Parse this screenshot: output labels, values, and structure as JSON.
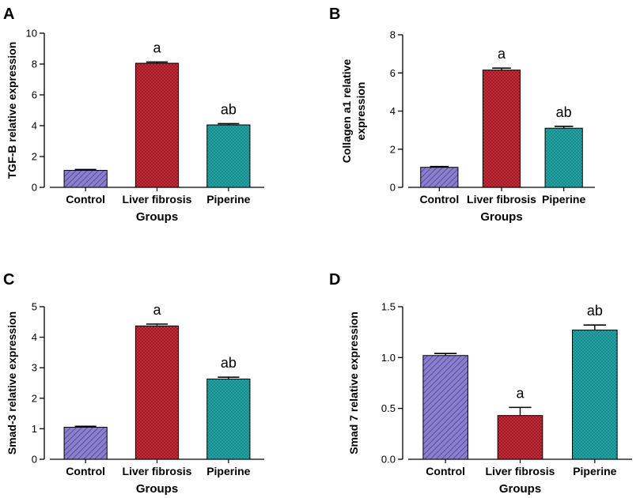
{
  "chart_data": [
    {
      "panel": "A",
      "type": "bar",
      "categories": [
        "Control",
        "Liver fibrosis",
        "Piperine"
      ],
      "values": [
        1.1,
        8.05,
        4.05
      ],
      "errors": [
        0.06,
        0.08,
        0.08
      ],
      "annotations": [
        "",
        "a",
        "ab"
      ],
      "xlabel": "Groups",
      "ylabel_lines": [
        "TGF-B relative expression"
      ],
      "ylim": [
        0,
        10
      ],
      "yticks": [
        0,
        2,
        4,
        6,
        8,
        10
      ],
      "ytick_labels": [
        "0",
        "2",
        "4",
        "6",
        "8",
        "10"
      ]
    },
    {
      "panel": "B",
      "type": "bar",
      "categories": [
        "Control",
        "Liver fibrosis",
        "Piperine"
      ],
      "values": [
        1.05,
        6.15,
        3.1
      ],
      "errors": [
        0.04,
        0.1,
        0.1
      ],
      "annotations": [
        "",
        "a",
        "ab"
      ],
      "xlabel": "Groups",
      "ylabel_lines": [
        "Collagen a1 relative",
        "expression"
      ],
      "ylim": [
        0,
        8
      ],
      "yticks": [
        0,
        2,
        4,
        6,
        8
      ],
      "ytick_labels": [
        "0",
        "2",
        "4",
        "6",
        "8"
      ]
    },
    {
      "panel": "C",
      "type": "bar",
      "categories": [
        "Control",
        "Liver fibrosis",
        "Piperine"
      ],
      "values": [
        1.05,
        4.37,
        2.63
      ],
      "errors": [
        0.03,
        0.06,
        0.06
      ],
      "annotations": [
        "",
        "a",
        "ab"
      ],
      "xlabel": "Groups",
      "ylabel_lines": [
        "Smad-3 relative expression"
      ],
      "ylim": [
        0,
        5
      ],
      "yticks": [
        0,
        1,
        2,
        3,
        4,
        5
      ],
      "ytick_labels": [
        "0",
        "1",
        "2",
        "3",
        "4",
        "5"
      ]
    },
    {
      "panel": "D",
      "type": "bar",
      "categories": [
        "Control",
        "Liver fibrosis",
        "Piperine"
      ],
      "values": [
        1.02,
        0.43,
        1.27
      ],
      "errors": [
        0.02,
        0.08,
        0.05
      ],
      "annotations": [
        "",
        "a",
        "ab"
      ],
      "xlabel": "Groups",
      "ylabel_lines": [
        "Smad 7 relative expression"
      ],
      "ylim": [
        0,
        1.5
      ],
      "yticks": [
        0,
        0.5,
        1.0,
        1.5
      ],
      "ytick_labels": [
        "0.0",
        "0.5",
        "1.0",
        "1.5"
      ]
    }
  ],
  "colors": {
    "Control": "#7b6fc0",
    "Liver fibrosis": "#cc2e3a",
    "Piperine": "#1f9a9c",
    "axis": "#000000"
  }
}
